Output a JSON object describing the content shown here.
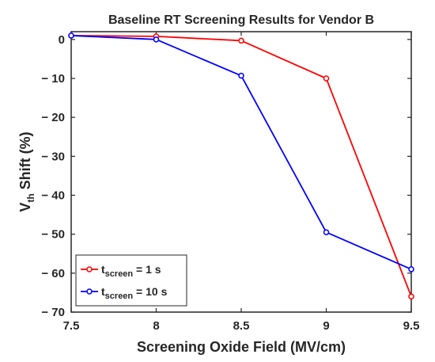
{
  "chart_data": {
    "type": "line",
    "title": "Baseline RT Screening Results for Vendor B",
    "xlabel": "Screening Oxide Field (MV/cm)",
    "ylabel": {
      "main": "V",
      "sub": "th",
      "rest": " Shift (%)"
    },
    "xlim": [
      7.5,
      9.5
    ],
    "ylim": [
      -70,
      2
    ],
    "xticks": [
      7.5,
      8,
      8.5,
      9,
      9.5
    ],
    "xtick_labels": [
      "7.5",
      "8",
      "8.5",
      "9",
      "9.5"
    ],
    "yticks": [
      0,
      -10,
      -20,
      -30,
      -40,
      -50,
      -60,
      -70
    ],
    "ytick_labels": [
      "0",
      "− 10",
      "− 20",
      "− 30",
      "− 40",
      "− 50",
      "− 60",
      "− 70"
    ],
    "grid": false,
    "legend_position": "bottom-left",
    "series": [
      {
        "name": {
          "main": "t",
          "sub": "screen",
          "rest": " = 1 s"
        },
        "color": "#ff0000",
        "x": [
          7.5,
          8,
          8.5,
          9,
          9.5
        ],
        "y": [
          1,
          0.8,
          -0.3,
          -10,
          -66
        ]
      },
      {
        "name": {
          "main": "t",
          "sub": "screen",
          "rest": " = 10 s"
        },
        "color": "#0000ff",
        "x": [
          7.5,
          8,
          8.5,
          9,
          9.5
        ],
        "y": [
          1,
          0,
          -9.3,
          -49.5,
          -59
        ]
      }
    ]
  }
}
